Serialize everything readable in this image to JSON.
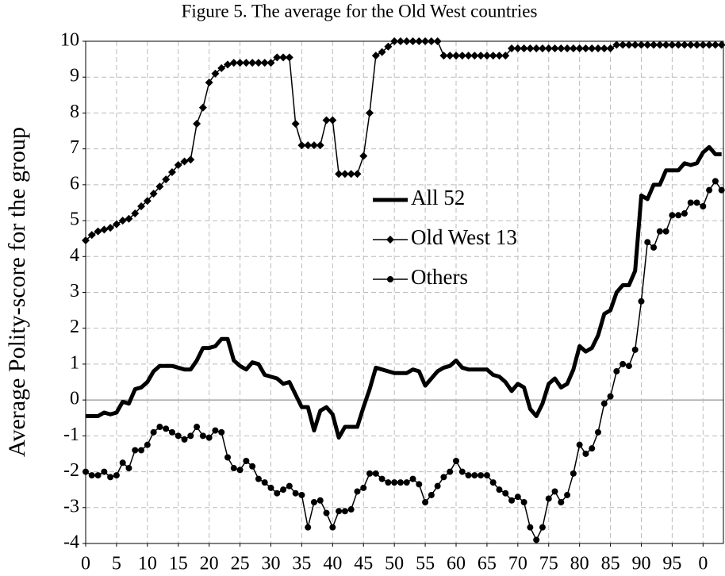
{
  "chart_data": {
    "type": "line",
    "title": "Figure 5. The average for the Old West countries",
    "y_label": "Average Polity-score for the group",
    "x": [
      1900,
      1901,
      1902,
      1903,
      1904,
      1905,
      1906,
      1907,
      1908,
      1909,
      1910,
      1911,
      1912,
      1913,
      1914,
      1915,
      1916,
      1917,
      1918,
      1919,
      1920,
      1921,
      1922,
      1923,
      1924,
      1925,
      1926,
      1927,
      1928,
      1929,
      1930,
      1931,
      1932,
      1933,
      1934,
      1935,
      1936,
      1937,
      1938,
      1939,
      1940,
      1941,
      1942,
      1943,
      1944,
      1945,
      1946,
      1947,
      1948,
      1949,
      1950,
      1951,
      1952,
      1953,
      1954,
      1955,
      1956,
      1957,
      1958,
      1959,
      1960,
      1961,
      1962,
      1963,
      1964,
      1965,
      1966,
      1967,
      1968,
      1969,
      1970,
      1971,
      1972,
      1973,
      1974,
      1975,
      1976,
      1977,
      1978,
      1979,
      1980,
      1981,
      1982,
      1983,
      1984,
      1985,
      1986,
      1987,
      1988,
      1989,
      1990,
      1991,
      1992,
      1993,
      1994,
      1995,
      1996,
      1997,
      1998,
      1999,
      2000,
      2001,
      2002,
      2003
    ],
    "series": [
      {
        "name": "All 52",
        "color": "#000000",
        "values": [
          -0.45,
          -0.45,
          -0.45,
          -0.35,
          -0.4,
          -0.35,
          -0.05,
          -0.1,
          0.3,
          0.35,
          0.5,
          0.8,
          0.95,
          0.95,
          0.95,
          0.9,
          0.85,
          0.85,
          1.1,
          1.45,
          1.45,
          1.5,
          1.7,
          1.7,
          1.1,
          0.95,
          0.85,
          1.05,
          1.0,
          0.7,
          0.65,
          0.6,
          0.45,
          0.5,
          0.15,
          -0.2,
          -0.2,
          -0.85,
          -0.3,
          -0.2,
          -0.4,
          -1.05,
          -0.75,
          -0.75,
          -0.75,
          -0.2,
          0.3,
          0.9,
          0.85,
          0.8,
          0.75,
          0.75,
          0.75,
          0.85,
          0.8,
          0.4,
          0.6,
          0.8,
          0.9,
          0.95,
          1.1,
          0.9,
          0.85,
          0.85,
          0.85,
          0.85,
          0.7,
          0.65,
          0.5,
          0.25,
          0.45,
          0.35,
          -0.25,
          -0.45,
          -0.1,
          0.45,
          0.6,
          0.35,
          0.45,
          0.85,
          1.5,
          1.35,
          1.45,
          1.8,
          2.4,
          2.5,
          3.0,
          3.2,
          3.2,
          3.6,
          5.7,
          5.6,
          6.0,
          6.0,
          6.4,
          6.4,
          6.4,
          6.6,
          6.55,
          6.6,
          6.9,
          7.05,
          6.85,
          6.85
        ]
      },
      {
        "name": "Old West 13",
        "color": "#000000",
        "marker": "diamond",
        "values": [
          4.45,
          4.6,
          4.7,
          4.75,
          4.8,
          4.9,
          5.0,
          5.05,
          5.2,
          5.4,
          5.55,
          5.75,
          5.95,
          6.15,
          6.35,
          6.55,
          6.65,
          6.7,
          7.7,
          8.15,
          8.85,
          9.1,
          9.25,
          9.35,
          9.4,
          9.4,
          9.4,
          9.4,
          9.4,
          9.4,
          9.4,
          9.55,
          9.55,
          9.55,
          7.7,
          7.1,
          7.1,
          7.1,
          7.1,
          7.8,
          7.8,
          6.3,
          6.3,
          6.3,
          6.3,
          6.8,
          8.0,
          9.6,
          9.7,
          9.85,
          10,
          10,
          10,
          10,
          10,
          10,
          10,
          10,
          9.6,
          9.6,
          9.6,
          9.6,
          9.6,
          9.6,
          9.6,
          9.6,
          9.6,
          9.6,
          9.6,
          9.8,
          9.8,
          9.8,
          9.8,
          9.8,
          9.8,
          9.8,
          9.8,
          9.8,
          9.8,
          9.8,
          9.8,
          9.8,
          9.8,
          9.8,
          9.8,
          9.8,
          9.9,
          9.9,
          9.9,
          9.9,
          9.9,
          9.9,
          9.9,
          9.9,
          9.9,
          9.9,
          9.9,
          9.9,
          9.9,
          9.9,
          9.9,
          9.9,
          9.9,
          9.9
        ]
      },
      {
        "name": "Others",
        "color": "#000000",
        "marker": "circle",
        "values": [
          -2.0,
          -2.1,
          -2.1,
          -2.0,
          -2.15,
          -2.1,
          -1.75,
          -1.9,
          -1.4,
          -1.4,
          -1.25,
          -0.9,
          -0.75,
          -0.8,
          -0.9,
          -1.0,
          -1.1,
          -1.0,
          -0.75,
          -1.0,
          -1.05,
          -0.85,
          -0.9,
          -1.6,
          -1.9,
          -1.95,
          -1.7,
          -1.85,
          -2.2,
          -2.3,
          -2.45,
          -2.6,
          -2.5,
          -2.4,
          -2.6,
          -2.65,
          -3.55,
          -2.85,
          -2.8,
          -3.15,
          -3.55,
          -3.1,
          -3.1,
          -3.05,
          -2.55,
          -2.45,
          -2.05,
          -2.05,
          -2.2,
          -2.3,
          -2.3,
          -2.3,
          -2.3,
          -2.2,
          -2.35,
          -2.85,
          -2.65,
          -2.4,
          -2.15,
          -2.0,
          -1.7,
          -2.0,
          -2.1,
          -2.1,
          -2.1,
          -2.1,
          -2.3,
          -2.5,
          -2.6,
          -2.8,
          -2.7,
          -2.85,
          -3.55,
          -3.9,
          -3.55,
          -2.75,
          -2.55,
          -2.85,
          -2.65,
          -2.05,
          -1.25,
          -1.5,
          -1.35,
          -0.9,
          -0.1,
          0.1,
          0.8,
          1.0,
          0.95,
          1.4,
          2.75,
          4.4,
          4.25,
          4.7,
          4.7,
          5.15,
          5.15,
          5.2,
          5.5,
          5.5,
          5.4,
          5.85,
          6.1,
          5.85
        ]
      }
    ],
    "xlim": [
      1900,
      2003.3
    ],
    "ylim": [
      -4,
      10
    ],
    "xticks": [
      {
        "value": 1900,
        "label": "0"
      },
      {
        "value": 1905,
        "label": "5"
      },
      {
        "value": 1910,
        "label": "10"
      },
      {
        "value": 1915,
        "label": "15"
      },
      {
        "value": 1920,
        "label": "20"
      },
      {
        "value": 1925,
        "label": "25"
      },
      {
        "value": 1930,
        "label": "30"
      },
      {
        "value": 1935,
        "label": "35"
      },
      {
        "value": 1940,
        "label": "40"
      },
      {
        "value": 1945,
        "label": "45"
      },
      {
        "value": 1950,
        "label": "50"
      },
      {
        "value": 1955,
        "label": "55"
      },
      {
        "value": 1960,
        "label": "60"
      },
      {
        "value": 1965,
        "label": "65"
      },
      {
        "value": 1970,
        "label": "70"
      },
      {
        "value": 1975,
        "label": "75"
      },
      {
        "value": 1980,
        "label": "80"
      },
      {
        "value": 1985,
        "label": "85"
      },
      {
        "value": 1990,
        "label": "90"
      },
      {
        "value": 1995,
        "label": "95"
      },
      {
        "value": 2000,
        "label": "0"
      }
    ],
    "yticks": [
      -4,
      -3,
      -2,
      -1,
      0,
      1,
      2,
      3,
      4,
      5,
      6,
      7,
      8,
      9,
      10
    ],
    "grid": true,
    "legend": "center"
  }
}
